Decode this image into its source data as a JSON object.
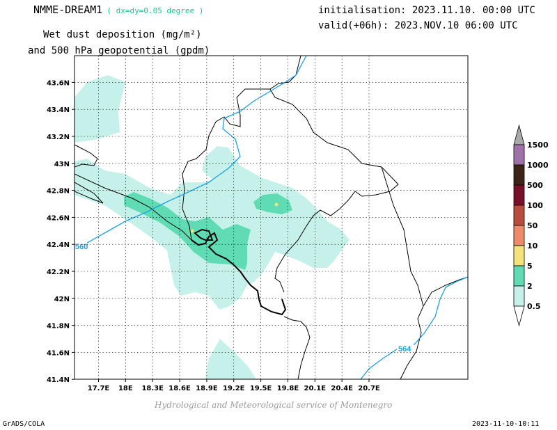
{
  "header": {
    "model": "NMME-DREAM1",
    "resolution": "( dx=dy=0.05 degree )",
    "variable_line1": "Wet dust deposition (mg/m²)",
    "variable_line2": "and 500 hPa geopotential (gpdm)",
    "initialisation": "initialisation: 2023.11.10. 00:00 UTC",
    "valid": "valid(+06h): 2023.NOV.10 06:00 UTC"
  },
  "map": {
    "lat_labels": [
      "43.6N",
      "43.4N",
      "43.2N",
      "43N",
      "42.8N",
      "42.6N",
      "42.4N",
      "42.2N",
      "42N",
      "41.8N",
      "41.6N",
      "41.4N"
    ],
    "lon_labels": [
      "17.7E",
      "18E",
      "18.3E",
      "18.6E",
      "18.9E",
      "19.2E",
      "19.5E",
      "19.8E",
      "20.1E",
      "20.4E",
      "20.7E"
    ],
    "contour_labels": [
      "560",
      "564"
    ]
  },
  "legend": {
    "levels": [
      "1500",
      "1000",
      "500",
      "100",
      "50",
      "10",
      "5",
      "2",
      "0.5"
    ],
    "colors": [
      "#a9a9a9",
      "#9f73a8",
      "#3d2416",
      "#7a0f2a",
      "#b84d3d",
      "#ed8a6a",
      "#f5e27a",
      "#5fdcb4",
      "#c6f1ea"
    ]
  },
  "footer": {
    "credit": "Hydrological and Meteorological service of Montenegro",
    "left": "GrADS/COLA",
    "right": "2023-11-10-10:11"
  }
}
